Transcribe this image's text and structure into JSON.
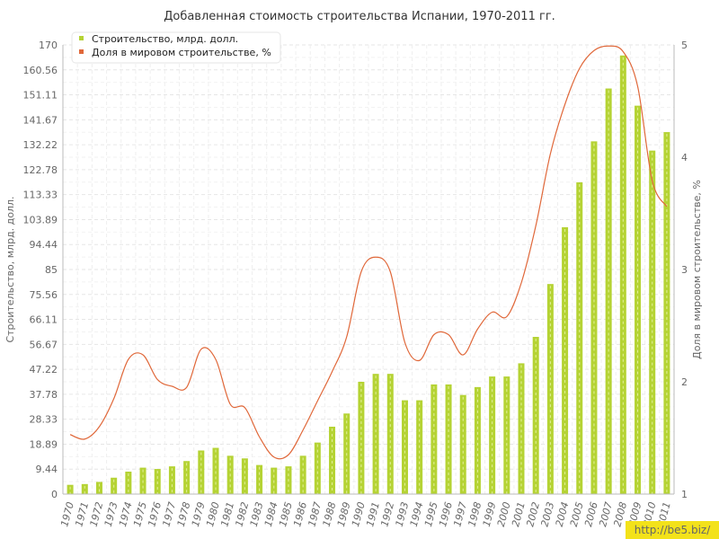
{
  "chart_data": {
    "type": "bar+line",
    "title": "Добавленная стоимость строительства Испании, 1970-2011 гг.",
    "categories": [
      "1970",
      "1971",
      "1972",
      "1973",
      "1974",
      "1975",
      "1976",
      "1977",
      "1978",
      "1979",
      "1980",
      "1981",
      "1982",
      "1983",
      "1984",
      "1985",
      "1986",
      "1987",
      "1988",
      "1989",
      "1990",
      "1991",
      "1992",
      "1993",
      "1994",
      "1995",
      "1996",
      "1997",
      "1998",
      "1999",
      "2000",
      "2001",
      "2002",
      "2003",
      "2004",
      "2005",
      "2006",
      "2007",
      "2008",
      "2009",
      "2010",
      "2011"
    ],
    "left_axis": {
      "label": "Строительство, млрд. долл.",
      "range": [
        0,
        170
      ],
      "ticks": [
        "0",
        "9.44",
        "18.89",
        "28.33",
        "37.78",
        "47.22",
        "56.67",
        "66.11",
        "75.56",
        "85",
        "94.44",
        "103.89",
        "113.33",
        "122.78",
        "132.22",
        "141.67",
        "151.11",
        "160.56",
        "170"
      ]
    },
    "right_axis": {
      "label": "Доля в мировом строительстве, %",
      "range": [
        1,
        5
      ],
      "ticks": [
        "1",
        "2",
        "3",
        "4",
        "5"
      ]
    },
    "series": [
      {
        "name": "Строительство, млрд. долл.",
        "type": "bar",
        "axis": "left",
        "color": "#b5d334",
        "values": [
          3.5,
          3.8,
          4.6,
          6.2,
          8.5,
          10,
          9.5,
          10.5,
          12.5,
          16.5,
          17.5,
          14.5,
          13.5,
          11,
          10,
          10.5,
          14.5,
          19.5,
          25.5,
          30.5,
          42.5,
          45.5,
          45.5,
          35.5,
          35.5,
          41.5,
          41.5,
          37.5,
          40.5,
          44.5,
          44.5,
          49.5,
          59.5,
          79.5,
          101,
          118,
          133.5,
          153.5,
          166,
          147,
          130,
          137
        ]
      },
      {
        "name": "Доля в мировом строительстве, %",
        "type": "line",
        "axis": "right",
        "color": "#e0683a",
        "values": [
          1.53,
          1.49,
          1.6,
          1.85,
          2.2,
          2.24,
          2.02,
          1.96,
          1.95,
          2.29,
          2.2,
          1.8,
          1.77,
          1.51,
          1.33,
          1.35,
          1.57,
          1.83,
          2.09,
          2.4,
          2.98,
          3.11,
          2.98,
          2.35,
          2.19,
          2.42,
          2.42,
          2.24,
          2.47,
          2.62,
          2.58,
          2.88,
          3.39,
          4.03,
          4.47,
          4.79,
          4.95,
          4.99,
          4.94,
          4.63,
          3.79,
          3.56
        ]
      }
    ],
    "legend_position": "top-left",
    "grid": true
  },
  "watermark": "http://be5.biz/"
}
